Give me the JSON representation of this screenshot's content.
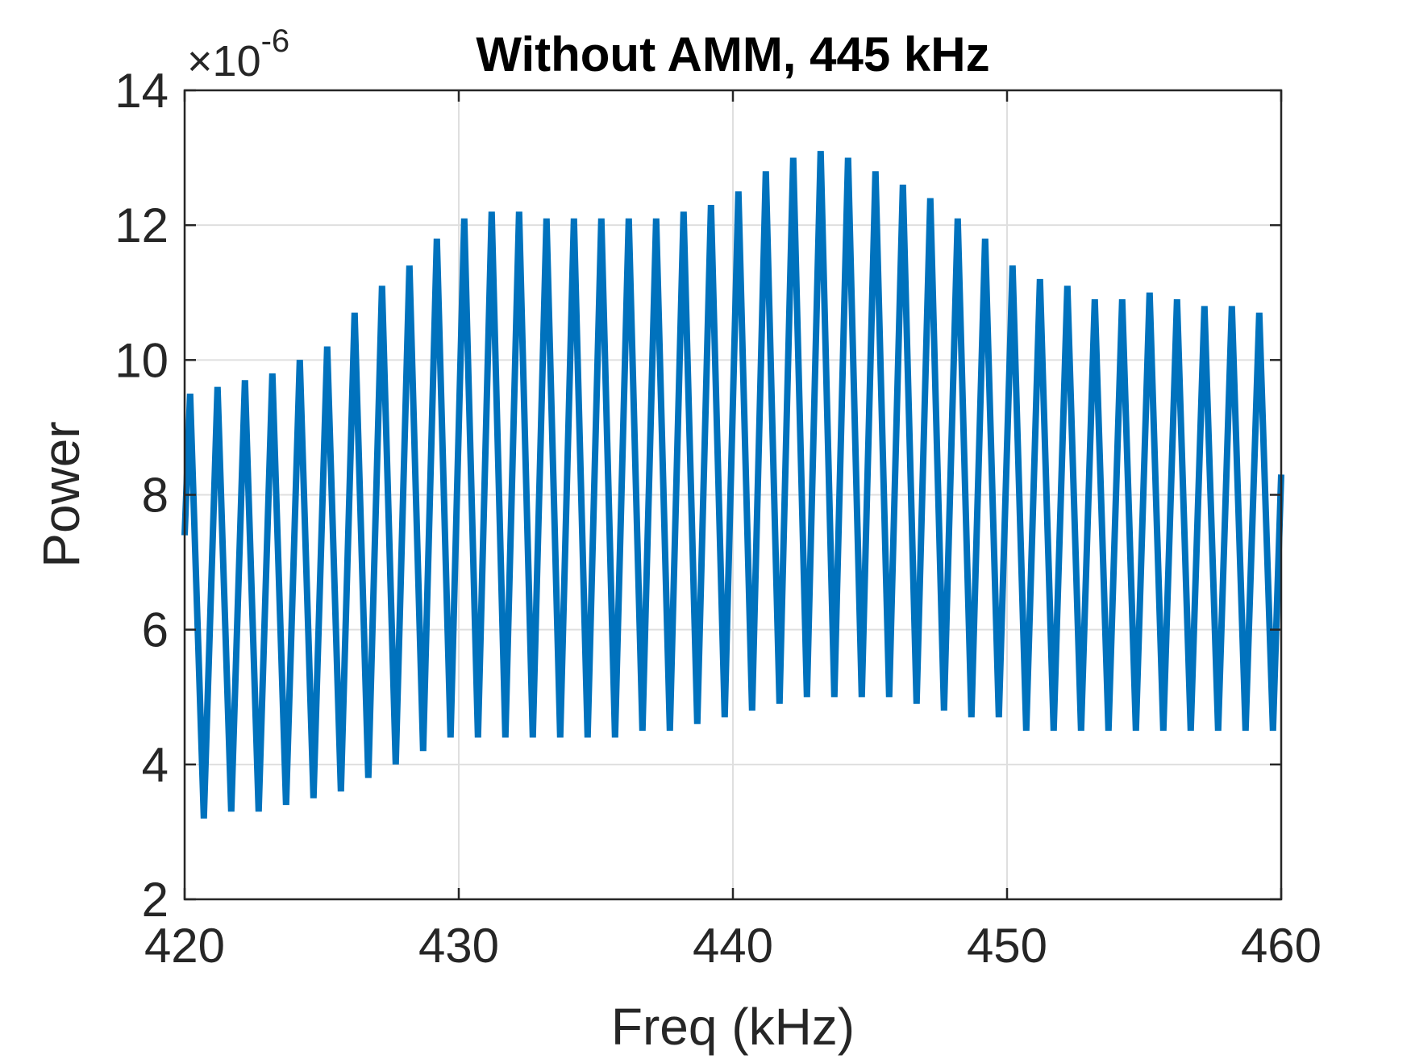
{
  "chart_data": {
    "type": "line",
    "title": "Without AMM, 445 kHz",
    "xlabel": "Freq (kHz)",
    "ylabel": "Power",
    "y_multiplier_label": "×10",
    "y_multiplier_exponent": "-6",
    "xlim": [
      420,
      460
    ],
    "ylim": [
      2,
      14
    ],
    "xticks": [
      420,
      430,
      440,
      450,
      460
    ],
    "yticks": [
      2,
      4,
      6,
      8,
      10,
      12,
      14
    ],
    "xtick_labels": [
      "420",
      "430",
      "440",
      "450",
      "460"
    ],
    "ytick_labels": [
      "2",
      "4",
      "6",
      "8",
      "10",
      "12",
      "14"
    ],
    "grid": true,
    "series": [
      {
        "color": "#0072BD",
        "x": [
          420.0,
          420.2,
          420.7,
          421.2,
          421.7,
          422.2,
          422.7,
          423.2,
          423.7,
          424.2,
          424.7,
          425.2,
          425.7,
          426.2,
          426.7,
          427.2,
          427.7,
          428.2,
          428.7,
          429.2,
          429.7,
          430.2,
          430.7,
          431.2,
          431.7,
          432.2,
          432.7,
          433.2,
          433.7,
          434.2,
          434.7,
          435.2,
          435.7,
          436.2,
          436.7,
          437.2,
          437.7,
          438.2,
          438.7,
          439.2,
          439.7,
          440.2,
          440.7,
          441.2,
          441.7,
          442.2,
          442.7,
          443.2,
          443.7,
          444.2,
          444.7,
          445.2,
          445.7,
          446.2,
          446.7,
          447.2,
          447.7,
          448.2,
          448.7,
          449.2,
          449.7,
          450.2,
          450.7,
          451.2,
          451.7,
          452.2,
          452.7,
          453.2,
          453.7,
          454.2,
          454.7,
          455.2,
          455.7,
          456.2,
          456.7,
          457.2,
          457.7,
          458.2,
          458.7,
          459.2,
          459.7,
          460.0
        ],
        "values": [
          7.4,
          9.5,
          3.2,
          9.6,
          3.3,
          9.7,
          3.3,
          9.8,
          3.4,
          10.0,
          3.5,
          10.2,
          3.6,
          10.7,
          3.8,
          11.1,
          4.0,
          11.4,
          4.2,
          11.8,
          4.4,
          12.1,
          4.4,
          12.2,
          4.4,
          12.2,
          4.4,
          12.1,
          4.4,
          12.1,
          4.4,
          12.1,
          4.4,
          12.1,
          4.5,
          12.1,
          4.5,
          12.2,
          4.6,
          12.3,
          4.7,
          12.5,
          4.8,
          12.8,
          4.9,
          13.0,
          5.0,
          13.1,
          5.0,
          13.0,
          5.0,
          12.8,
          5.0,
          12.6,
          4.9,
          12.4,
          4.8,
          12.1,
          4.7,
          11.8,
          4.7,
          11.4,
          4.5,
          11.2,
          4.5,
          11.1,
          4.5,
          10.9,
          4.5,
          10.9,
          4.5,
          11.0,
          4.5,
          10.9,
          4.5,
          10.8,
          4.5,
          10.8,
          4.5,
          10.7,
          4.5,
          8.3
        ]
      }
    ]
  }
}
